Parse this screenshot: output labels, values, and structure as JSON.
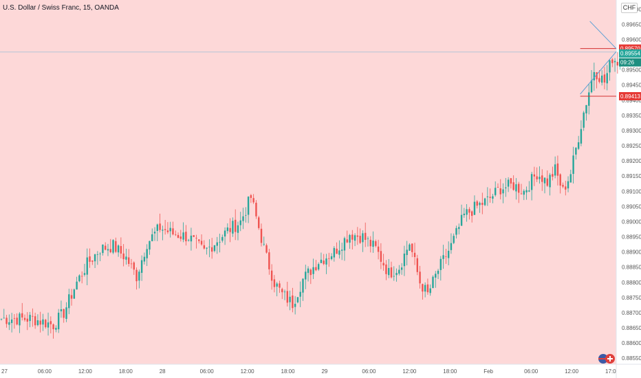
{
  "chart": {
    "title": "U.S. Dollar / Swiss Franc, 15, OANDA",
    "currency": "CHF",
    "background": "#fdd8d8",
    "up_color": "#26a69a",
    "down_color": "#ef5350"
  },
  "chart_data": {
    "type": "candlestick",
    "ylim": [
      0.8853,
      0.8973
    ],
    "y_ticks": [
      "0.89700",
      "0.89650",
      "0.89600",
      "0.89550",
      "0.89500",
      "0.89450",
      "0.89400",
      "0.89350",
      "0.89300",
      "0.89250",
      "0.89200",
      "0.89150",
      "0.89100",
      "0.89050",
      "0.89000",
      "0.88950",
      "0.88900",
      "0.88850",
      "0.88800",
      "0.88750",
      "0.88700",
      "0.88650",
      "0.88600",
      "0.88550"
    ],
    "x_ticks": [
      "27",
      "06:00",
      "12:00",
      "18:00",
      "28",
      "06:00",
      "12:00",
      "18:00",
      "29",
      "06:00",
      "12:00",
      "18:00",
      "Feb",
      "06:00",
      "12:00",
      "17:0"
    ],
    "anchors": [
      [
        0,
        0.8868
      ],
      [
        12,
        0.8868
      ],
      [
        20,
        0.8866
      ],
      [
        24,
        0.887
      ],
      [
        29,
        0.888
      ],
      [
        33,
        0.8886
      ],
      [
        38,
        0.8891
      ],
      [
        43,
        0.8892
      ],
      [
        48,
        0.8888
      ],
      [
        52,
        0.8882
      ],
      [
        56,
        0.8893
      ],
      [
        61,
        0.8898
      ],
      [
        66,
        0.8896
      ],
      [
        72,
        0.8895
      ],
      [
        78,
        0.889
      ],
      [
        82,
        0.8893
      ],
      [
        87,
        0.8897
      ],
      [
        92,
        0.89
      ],
      [
        96,
        0.8908
      ],
      [
        99,
        0.8898
      ],
      [
        102,
        0.8888
      ],
      [
        105,
        0.888
      ],
      [
        108,
        0.8876
      ],
      [
        112,
        0.8873
      ],
      [
        116,
        0.8881
      ],
      [
        122,
        0.8887
      ],
      [
        128,
        0.889
      ],
      [
        134,
        0.8896
      ],
      [
        139,
        0.8895
      ],
      [
        144,
        0.8891
      ],
      [
        149,
        0.8883
      ],
      [
        153,
        0.8885
      ],
      [
        157,
        0.8893
      ],
      [
        161,
        0.888
      ],
      [
        164,
        0.8876
      ],
      [
        168,
        0.8884
      ],
      [
        173,
        0.8892
      ],
      [
        178,
        0.8902
      ],
      [
        183,
        0.8905
      ],
      [
        187,
        0.8907
      ],
      [
        192,
        0.8911
      ],
      [
        197,
        0.8912
      ],
      [
        201,
        0.891
      ],
      [
        206,
        0.8916
      ],
      [
        210,
        0.8913
      ],
      [
        213,
        0.8917
      ],
      [
        216,
        0.891
      ],
      [
        219,
        0.8916
      ],
      [
        224,
        0.8936
      ],
      [
        228,
        0.895
      ],
      [
        232,
        0.8946
      ],
      [
        235,
        0.8954
      ],
      [
        238,
        0.8952
      ]
    ],
    "seed": 7,
    "last_price": "0.89554",
    "countdown": "09:26",
    "resistance": "0.89570",
    "support": "0.89413"
  }
}
